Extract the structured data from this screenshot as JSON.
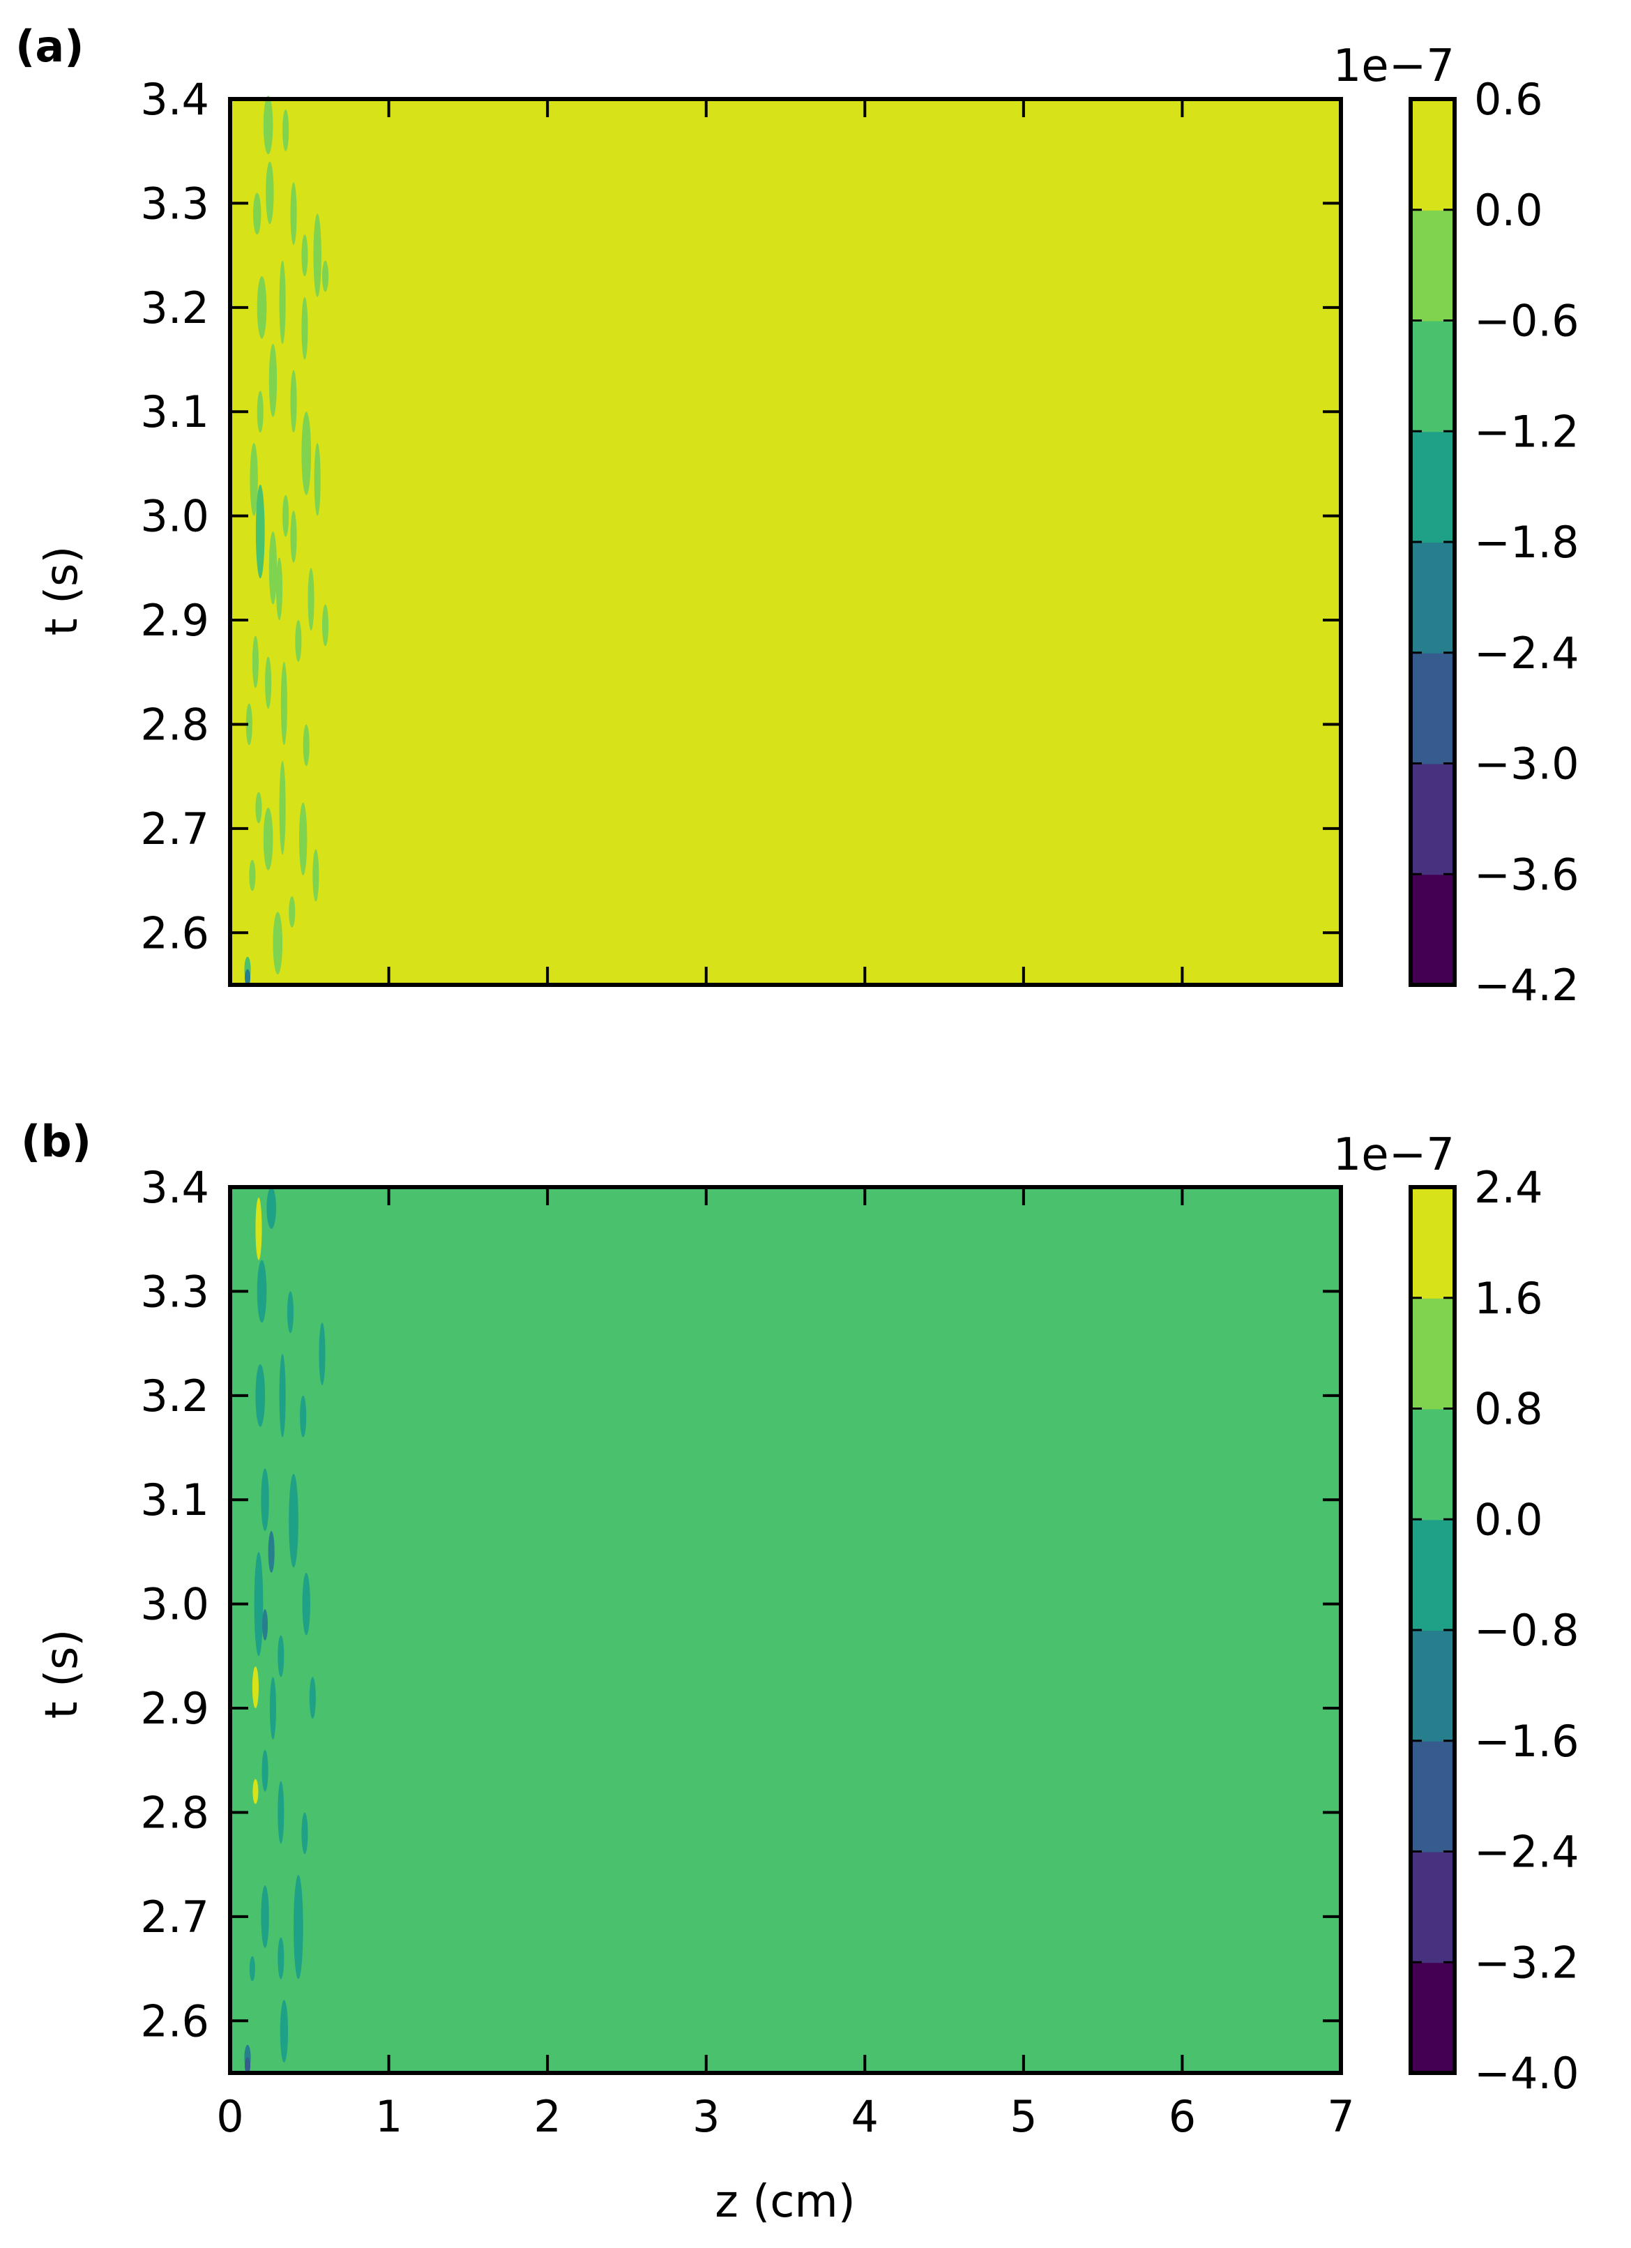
{
  "chart_data": [
    {
      "type": "heatmap",
      "panel_label": "(a)",
      "xlabel": "",
      "ylabel": "t (s)",
      "xlim": [
        0,
        7
      ],
      "ylim": [
        2.55,
        3.4
      ],
      "x_ticks": [
        0,
        1,
        2,
        3,
        4,
        5,
        6,
        7
      ],
      "x_tick_labels": [],
      "y_ticks": [
        2.6,
        2.7,
        2.8,
        2.9,
        3.0,
        3.1,
        3.2,
        3.3,
        3.4
      ],
      "y_tick_labels": [
        "2.6",
        "2.7",
        "2.8",
        "2.9",
        "3.0",
        "3.1",
        "3.2",
        "3.3",
        "3.4"
      ],
      "background_level": 7,
      "colorbar": {
        "offset_label": "1e−7",
        "levels": [
          -4.2,
          -3.6,
          -3.0,
          -2.4,
          -1.8,
          -1.2,
          -0.6,
          0.0,
          0.6
        ],
        "tick_labels": [
          "−4.2",
          "−3.6",
          "−3.0",
          "−2.4",
          "−1.8",
          "−1.2",
          "−0.6",
          "0.0",
          "0.6"
        ],
        "colors": [
          "#440154",
          "#46327e",
          "#365c8d",
          "#277f8e",
          "#1fa187",
          "#4ac16d",
          "#7fd34e",
          "#d8e219"
        ]
      },
      "features": [
        {
          "z": 0.24,
          "t": 3.375,
          "dz": 0.03,
          "dt": 0.028,
          "level": 6
        },
        {
          "z": 0.35,
          "t": 3.37,
          "dz": 0.02,
          "dt": 0.02,
          "level": 6
        },
        {
          "z": 0.25,
          "t": 3.31,
          "dz": 0.025,
          "dt": 0.03,
          "level": 6
        },
        {
          "z": 0.17,
          "t": 3.29,
          "dz": 0.025,
          "dt": 0.02,
          "level": 6
        },
        {
          "z": 0.4,
          "t": 3.29,
          "dz": 0.02,
          "dt": 0.03,
          "level": 6
        },
        {
          "z": 0.55,
          "t": 3.25,
          "dz": 0.025,
          "dt": 0.04,
          "level": 6
        },
        {
          "z": 0.6,
          "t": 3.23,
          "dz": 0.02,
          "dt": 0.015,
          "level": 6
        },
        {
          "z": 0.47,
          "t": 3.25,
          "dz": 0.02,
          "dt": 0.02,
          "level": 6
        },
        {
          "z": 0.2,
          "t": 3.2,
          "dz": 0.03,
          "dt": 0.03,
          "level": 6
        },
        {
          "z": 0.33,
          "t": 3.205,
          "dz": 0.02,
          "dt": 0.04,
          "level": 6
        },
        {
          "z": 0.47,
          "t": 3.18,
          "dz": 0.02,
          "dt": 0.03,
          "level": 6
        },
        {
          "z": 0.27,
          "t": 3.13,
          "dz": 0.025,
          "dt": 0.035,
          "level": 6
        },
        {
          "z": 0.19,
          "t": 3.1,
          "dz": 0.02,
          "dt": 0.02,
          "level": 6
        },
        {
          "z": 0.4,
          "t": 3.11,
          "dz": 0.02,
          "dt": 0.03,
          "level": 6
        },
        {
          "z": 0.48,
          "t": 3.06,
          "dz": 0.03,
          "dt": 0.04,
          "level": 6
        },
        {
          "z": 0.55,
          "t": 3.035,
          "dz": 0.02,
          "dt": 0.035,
          "level": 6
        },
        {
          "z": 0.15,
          "t": 3.035,
          "dz": 0.025,
          "dt": 0.035,
          "level": 6
        },
        {
          "z": 0.19,
          "t": 2.985,
          "dz": 0.028,
          "dt": 0.045,
          "level": 5
        },
        {
          "z": 0.27,
          "t": 2.95,
          "dz": 0.025,
          "dt": 0.035,
          "level": 6
        },
        {
          "z": 0.35,
          "t": 3.0,
          "dz": 0.02,
          "dt": 0.02,
          "level": 6
        },
        {
          "z": 0.4,
          "t": 2.98,
          "dz": 0.02,
          "dt": 0.025,
          "level": 6
        },
        {
          "z": 0.31,
          "t": 2.93,
          "dz": 0.02,
          "dt": 0.03,
          "level": 6
        },
        {
          "z": 0.51,
          "t": 2.92,
          "dz": 0.02,
          "dt": 0.03,
          "level": 6
        },
        {
          "z": 0.6,
          "t": 2.895,
          "dz": 0.02,
          "dt": 0.02,
          "level": 6
        },
        {
          "z": 0.43,
          "t": 2.88,
          "dz": 0.02,
          "dt": 0.02,
          "level": 6
        },
        {
          "z": 0.16,
          "t": 2.86,
          "dz": 0.02,
          "dt": 0.025,
          "level": 6
        },
        {
          "z": 0.24,
          "t": 2.84,
          "dz": 0.02,
          "dt": 0.025,
          "level": 6
        },
        {
          "z": 0.34,
          "t": 2.82,
          "dz": 0.02,
          "dt": 0.04,
          "level": 6
        },
        {
          "z": 0.12,
          "t": 2.8,
          "dz": 0.02,
          "dt": 0.02,
          "level": 6
        },
        {
          "z": 0.48,
          "t": 2.78,
          "dz": 0.02,
          "dt": 0.02,
          "level": 6
        },
        {
          "z": 0.18,
          "t": 2.72,
          "dz": 0.02,
          "dt": 0.015,
          "level": 6
        },
        {
          "z": 0.24,
          "t": 2.69,
          "dz": 0.03,
          "dt": 0.03,
          "level": 6
        },
        {
          "z": 0.33,
          "t": 2.72,
          "dz": 0.02,
          "dt": 0.045,
          "level": 6
        },
        {
          "z": 0.46,
          "t": 2.69,
          "dz": 0.025,
          "dt": 0.035,
          "level": 6
        },
        {
          "z": 0.14,
          "t": 2.655,
          "dz": 0.02,
          "dt": 0.015,
          "level": 6
        },
        {
          "z": 0.54,
          "t": 2.655,
          "dz": 0.02,
          "dt": 0.025,
          "level": 6
        },
        {
          "z": 0.39,
          "t": 2.62,
          "dz": 0.02,
          "dt": 0.015,
          "level": 6
        },
        {
          "z": 0.3,
          "t": 2.59,
          "dz": 0.03,
          "dt": 0.03,
          "level": 6
        },
        {
          "z": 0.11,
          "t": 2.565,
          "dz": 0.02,
          "dt": 0.012,
          "level": 5
        },
        {
          "z": 0.11,
          "t": 2.557,
          "dz": 0.012,
          "dt": 0.008,
          "level": 3
        }
      ]
    },
    {
      "type": "heatmap",
      "panel_label": "(b)",
      "xlabel": "z (cm)",
      "ylabel": "t (s)",
      "xlim": [
        0,
        7
      ],
      "ylim": [
        2.55,
        3.4
      ],
      "x_ticks": [
        0,
        1,
        2,
        3,
        4,
        5,
        6,
        7
      ],
      "x_tick_labels": [
        "0",
        "1",
        "2",
        "3",
        "4",
        "5",
        "6",
        "7"
      ],
      "y_ticks": [
        2.6,
        2.7,
        2.8,
        2.9,
        3.0,
        3.1,
        3.2,
        3.3,
        3.4
      ],
      "y_tick_labels": [
        "2.6",
        "2.7",
        "2.8",
        "2.9",
        "3.0",
        "3.1",
        "3.2",
        "3.3",
        "3.4"
      ],
      "background_level": 5,
      "colorbar": {
        "offset_label": "1e−7",
        "levels": [
          -4.0,
          -3.2,
          -2.4,
          -1.6,
          -0.8,
          0.0,
          0.8,
          1.6,
          2.4
        ],
        "tick_labels": [
          "−4.0",
          "−3.2",
          "−2.4",
          "−1.6",
          "−0.8",
          "0.0",
          "0.8",
          "1.6",
          "2.4"
        ],
        "colors": [
          "#440154",
          "#46327e",
          "#365c8d",
          "#277f8e",
          "#1fa187",
          "#4ac16d",
          "#7fd34e",
          "#d8e219"
        ]
      },
      "features": [
        {
          "z": 0.18,
          "t": 3.36,
          "dz": 0.02,
          "dt": 0.03,
          "level": 7
        },
        {
          "z": 0.26,
          "t": 3.38,
          "dz": 0.03,
          "dt": 0.02,
          "level": 4
        },
        {
          "z": 0.2,
          "t": 3.3,
          "dz": 0.03,
          "dt": 0.03,
          "level": 4
        },
        {
          "z": 0.38,
          "t": 3.28,
          "dz": 0.02,
          "dt": 0.02,
          "level": 4
        },
        {
          "z": 0.58,
          "t": 3.24,
          "dz": 0.02,
          "dt": 0.03,
          "level": 4
        },
        {
          "z": 0.19,
          "t": 3.2,
          "dz": 0.03,
          "dt": 0.03,
          "level": 4
        },
        {
          "z": 0.33,
          "t": 3.2,
          "dz": 0.02,
          "dt": 0.04,
          "level": 4
        },
        {
          "z": 0.46,
          "t": 3.18,
          "dz": 0.02,
          "dt": 0.02,
          "level": 4
        },
        {
          "z": 0.22,
          "t": 3.1,
          "dz": 0.025,
          "dt": 0.03,
          "level": 4
        },
        {
          "z": 0.4,
          "t": 3.08,
          "dz": 0.03,
          "dt": 0.045,
          "level": 4
        },
        {
          "z": 0.26,
          "t": 3.05,
          "dz": 0.02,
          "dt": 0.02,
          "level": 3
        },
        {
          "z": 0.48,
          "t": 3.0,
          "dz": 0.025,
          "dt": 0.03,
          "level": 4
        },
        {
          "z": 0.18,
          "t": 3.0,
          "dz": 0.028,
          "dt": 0.05,
          "level": 4
        },
        {
          "z": 0.22,
          "t": 2.98,
          "dz": 0.012,
          "dt": 0.015,
          "level": 3
        },
        {
          "z": 0.32,
          "t": 2.95,
          "dz": 0.02,
          "dt": 0.02,
          "level": 4
        },
        {
          "z": 0.16,
          "t": 2.92,
          "dz": 0.02,
          "dt": 0.02,
          "level": 7
        },
        {
          "z": 0.27,
          "t": 2.9,
          "dz": 0.02,
          "dt": 0.03,
          "level": 4
        },
        {
          "z": 0.52,
          "t": 2.91,
          "dz": 0.02,
          "dt": 0.02,
          "level": 4
        },
        {
          "z": 0.22,
          "t": 2.84,
          "dz": 0.02,
          "dt": 0.02,
          "level": 4
        },
        {
          "z": 0.32,
          "t": 2.8,
          "dz": 0.02,
          "dt": 0.03,
          "level": 4
        },
        {
          "z": 0.16,
          "t": 2.82,
          "dz": 0.012,
          "dt": 0.012,
          "level": 7
        },
        {
          "z": 0.47,
          "t": 2.78,
          "dz": 0.02,
          "dt": 0.02,
          "level": 4
        },
        {
          "z": 0.22,
          "t": 2.7,
          "dz": 0.025,
          "dt": 0.03,
          "level": 4
        },
        {
          "z": 0.43,
          "t": 2.69,
          "dz": 0.03,
          "dt": 0.05,
          "level": 4
        },
        {
          "z": 0.32,
          "t": 2.66,
          "dz": 0.02,
          "dt": 0.02,
          "level": 4
        },
        {
          "z": 0.14,
          "t": 2.65,
          "dz": 0.015,
          "dt": 0.012,
          "level": 4
        },
        {
          "z": 0.34,
          "t": 2.59,
          "dz": 0.025,
          "dt": 0.03,
          "level": 4
        },
        {
          "z": 0.11,
          "t": 2.565,
          "dz": 0.02,
          "dt": 0.012,
          "level": 3
        },
        {
          "z": 0.11,
          "t": 2.557,
          "dz": 0.012,
          "dt": 0.008,
          "level": 2
        }
      ]
    }
  ]
}
